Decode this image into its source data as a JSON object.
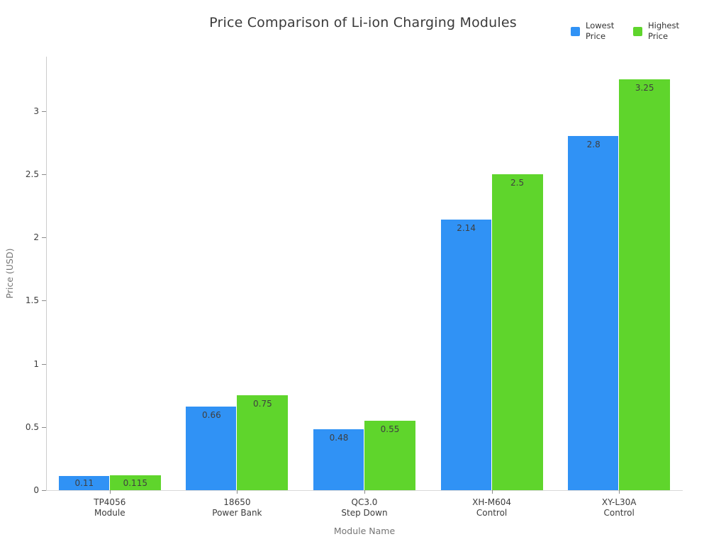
{
  "chart_data": {
    "type": "bar",
    "title": "Price Comparison of Li-ion Charging Modules",
    "xlabel": "Module Name",
    "ylabel": "Price (USD)",
    "categories": [
      "TP4056 Module",
      "18650 Power Bank",
      "QC3.0 Step Down",
      "XH-M604 Control",
      "XY-L30A Control"
    ],
    "category_lines": [
      [
        "TP4056",
        "Module"
      ],
      [
        "18650",
        "Power Bank"
      ],
      [
        "QC3.0",
        "Step Down"
      ],
      [
        "XH-M604",
        "Control"
      ],
      [
        "XY-L30A",
        "Control"
      ]
    ],
    "series": [
      {
        "name": "Lowest Price",
        "color": "#3092F5",
        "values": [
          0.11,
          0.66,
          0.48,
          2.14,
          2.8
        ]
      },
      {
        "name": "Highest Price",
        "color": "#5FD52C",
        "values": [
          0.115,
          0.75,
          0.55,
          2.5,
          3.25
        ]
      }
    ],
    "value_labels": {
      "Lowest Price": [
        "0.11",
        "0.66",
        "0.48",
        "2.14",
        "2.8"
      ],
      "Highest Price": [
        "0.115",
        "0.75",
        "0.55",
        "2.5",
        "3.25"
      ]
    },
    "yticks": [
      0,
      0.5,
      1,
      1.5,
      2,
      2.5,
      3
    ],
    "ylim": [
      0,
      3.43
    ],
    "grid": false,
    "legend_position": "top-right",
    "colors": {
      "title_text": "#3a3a3a",
      "axis_line": "#cccccc",
      "tick_mark": "#8a8a8a",
      "tick_text": "#3c3c3c",
      "axis_title_text": "#757575",
      "value_label_text": "#3f3f3f",
      "background": "#ffffff"
    }
  }
}
